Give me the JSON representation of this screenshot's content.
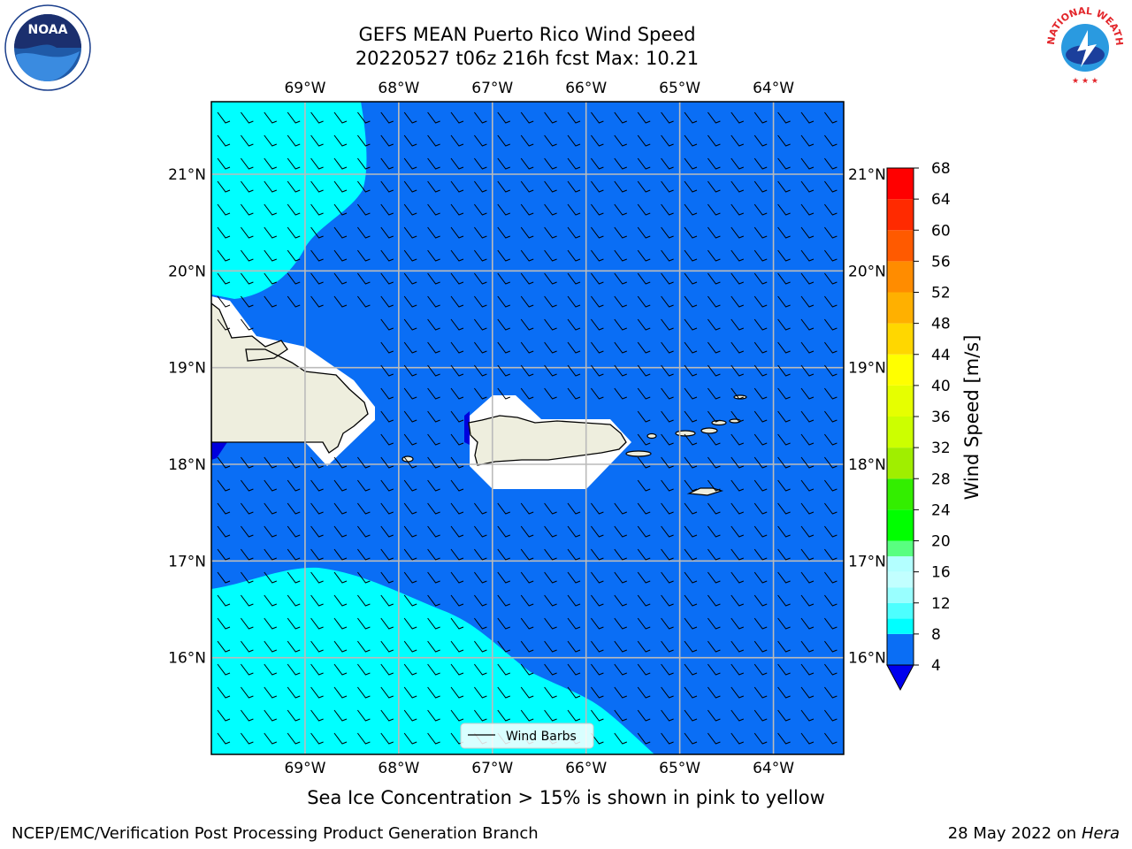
{
  "title": {
    "line1": "GEFS MEAN Puerto Rico Wind Speed",
    "line2": "20220527 t06z 216h fcst   Max: 10.21"
  },
  "axes": {
    "lon_labels": [
      "69°W",
      "68°W",
      "67°W",
      "66°W",
      "65°W",
      "64°W"
    ],
    "lat_labels": [
      "21°N",
      "20°N",
      "19°N",
      "18°N",
      "17°N",
      "16°N"
    ],
    "extent": {
      "lon_min": -70.0,
      "lon_max": -63.25,
      "lat_min": 15.0,
      "lat_max": 21.75
    },
    "gridlines": true
  },
  "colorbar": {
    "label": "Wind Speed [m/s]",
    "ticks": [
      "68",
      "64",
      "60",
      "56",
      "52",
      "48",
      "44",
      "40",
      "36",
      "32",
      "28",
      "24",
      "20",
      "16",
      "12",
      "8",
      "4"
    ],
    "levels": [
      4,
      8,
      10,
      12,
      14,
      16,
      18,
      20,
      24,
      28,
      32,
      36,
      40,
      44,
      48,
      52,
      56,
      60,
      64,
      68
    ],
    "colors": [
      "#0a6ef5",
      "#00ffff",
      "#4dffff",
      "#99ffff",
      "#c2ffff",
      "#b3ffff",
      "#59ff80",
      "#00ff00",
      "#33ee00",
      "#a0ee00",
      "#ccff00",
      "#e6ff00",
      "#ffff00",
      "#ffd700",
      "#ffb000",
      "#ff8c00",
      "#ff5a00",
      "#ff2a00",
      "#ff0000"
    ],
    "under_color": "#0000ee"
  },
  "legend": {
    "label": "Wind Barbs"
  },
  "fill_colors": {
    "ocean_4_8": "#0a6ef5",
    "ocean_8_12": "#00ffff",
    "land": "#eeeede",
    "low": "#0000dd"
  },
  "caption": "Sea Ice Concentration > 15% is shown in pink to yellow",
  "footer": {
    "left": "NCEP/EMC/Verification Post Processing Product Generation Branch",
    "right_prefix": "28 May 2022 on",
    "right_machine": "Hera"
  },
  "logos": {
    "left": "noaa-logo",
    "right": "nws-logo",
    "nws_text": "NATIONAL WEATHER SERVICE"
  }
}
